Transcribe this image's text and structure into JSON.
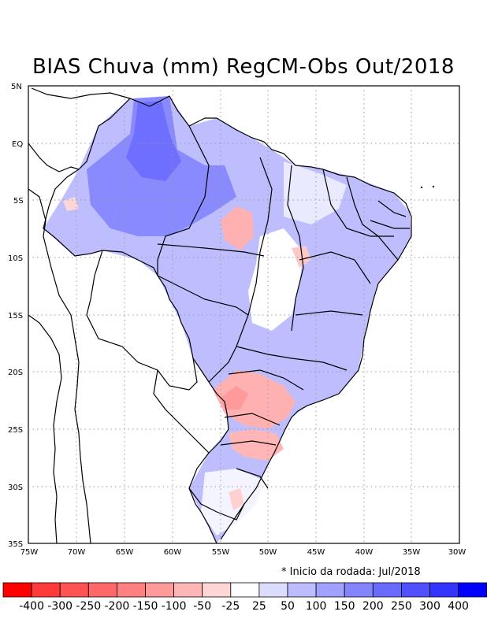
{
  "title": "BIAS Chuva (mm) RegCM-Obs Out/2018",
  "lat_ticks": [
    "5N",
    "EQ",
    "5S",
    "10S",
    "15S",
    "20S",
    "25S",
    "30S",
    "35S"
  ],
  "lon_ticks": [
    "75W",
    "70W",
    "65W",
    "60W",
    "55W",
    "50W",
    "45W",
    "40W",
    "35W",
    "30W"
  ],
  "note": "* Inicio da rodada: Jul/2018",
  "legend": {
    "labels": [
      "-400",
      "-300",
      "-250",
      "-200",
      "-150",
      "-100",
      "-50",
      "-25",
      "25",
      "50",
      "100",
      "150",
      "200",
      "250",
      "300",
      "400"
    ],
    "colors": [
      "#ff0000",
      "#ff3a3a",
      "#ff5252",
      "#ff6868",
      "#ff8080",
      "#ff9a9a",
      "#ffb6b6",
      "#ffd6d6",
      "#ffffff",
      "#dcdcff",
      "#bcbcff",
      "#a0a0ff",
      "#8484ff",
      "#6a6aff",
      "#5050ff",
      "#3434ff",
      "#0000ff"
    ]
  },
  "colors": {
    "positive_bias": "#a6a6ff",
    "strong_positive_bias": "#7070ff",
    "negative_bias": "#ffb6b6",
    "strong_negative_bias": "#ff8a8a",
    "grid": "#9a9a9a",
    "border": "#000000"
  }
}
